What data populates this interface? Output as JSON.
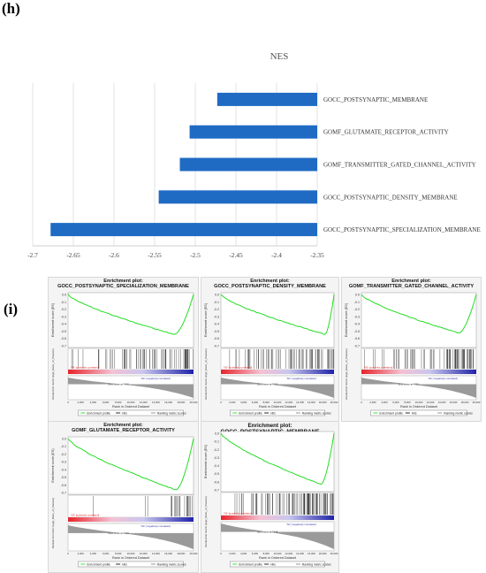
{
  "panel_h_label": "(h)",
  "panel_i_label": "(i)",
  "chart_data": {
    "type": "bar",
    "orientation": "horizontal",
    "title": "NES",
    "categories": [
      "GOCC_POSTSYNAPTIC_MEMBRANE",
      "GOMF_GLUTAMATE_RECEPTOR_ACTIVITY",
      "GOMF_TRANSMITTER_GATED_CHANNEL_ACTIVITY",
      "GOCC_POSTSYNAPTIC_DENSITY_MEMBRANE",
      "GOCC_POSTSYNAPTIC_SPECIALIZATION_MEMBRANE"
    ],
    "values": [
      -2.473,
      -2.507,
      -2.519,
      -2.545,
      -2.678
    ],
    "xlim": [
      -2.7,
      -2.35
    ],
    "xticks": [
      "-2.7",
      "-2.65",
      "-2.6",
      "-2.55",
      "-2.5",
      "-2.45",
      "-2.4",
      "-2.35"
    ],
    "grid": true,
    "bar_color": "#1f6bc4"
  },
  "gsea_plots": [
    {
      "title_line1": "Enrichment plot:",
      "title_line2": "GOCC_POSTSYNAPTIC_SPECIALIZATION_MEMBRANE",
      "min_es": -0.62
    },
    {
      "title_line1": "Enrichment plot:",
      "title_line2": "GOCC_POSTSYNAPTIC_DENSITY_MEMBRANE",
      "min_es": -0.62
    },
    {
      "title_line1": "Enrichment plot:",
      "title_line2": "GOMF_TRANSMITTER_GATED_CHANNEL_ACTIVITY",
      "min_es": -0.6
    },
    {
      "title_line1": "Enrichment plot:",
      "title_line2": "GOMF_GLUTAMATE_RECEPTOR_ACTIVITY",
      "min_es": -0.78
    },
    {
      "title_line1": "Enrichment plot: GOCC_POSTSYNAPTIC_MEMBRANE",
      "title_line2": "",
      "min_es": -0.72
    }
  ],
  "gsea_common": {
    "ylabel_es": "Enrichment score (ES)",
    "ylabel_metric": "Ranked list metric (log2_Ratio_of_Classes)",
    "xlabel": "Rank in Ordered Dataset",
    "pos_label": "'NS' (positively correlated)",
    "neg_label": "'NC' (negatively correlated)",
    "zero_cross": "Zero cross at 7446",
    "legend": [
      "Enrichment profile",
      "Hits",
      "Ranking metric scores"
    ],
    "xticks": [
      "0",
      "2,000",
      "4,000",
      "6,000",
      "8,000",
      "10,000",
      "12,000",
      "14,000",
      "16,000",
      "18,000",
      "20,000"
    ],
    "es_color": "#22dd22"
  }
}
